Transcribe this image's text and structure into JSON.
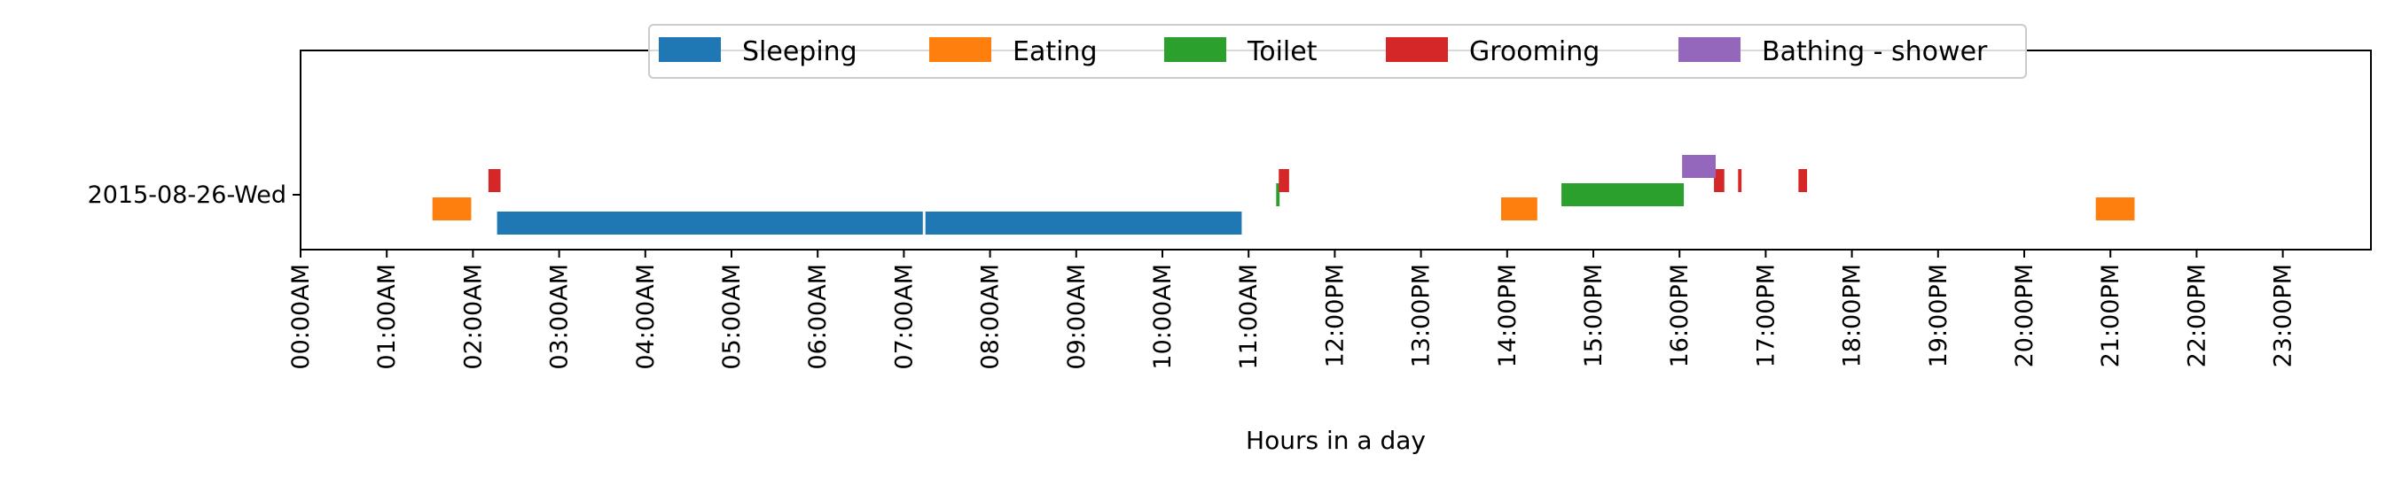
{
  "chart_data": {
    "type": "timeline",
    "title": "",
    "xlabel": "Hours in a day",
    "ylabel": "",
    "xlim": [
      0,
      24
    ],
    "x_ticks": [
      "00:00AM",
      "01:00AM",
      "02:00AM",
      "03:00AM",
      "04:00AM",
      "05:00AM",
      "06:00AM",
      "07:00AM",
      "08:00AM",
      "09:00AM",
      "10:00AM",
      "11:00AM",
      "12:00PM",
      "13:00PM",
      "14:00PM",
      "15:00PM",
      "16:00PM",
      "17:00PM",
      "18:00PM",
      "19:00PM",
      "20:00PM",
      "21:00PM",
      "22:00PM",
      "23:00PM"
    ],
    "y_categories": [
      "2015-08-26-Wed"
    ],
    "legend_position": "top-center",
    "series": [
      {
        "name": "Sleeping",
        "color": "#1f77b4",
        "lane": -1,
        "intervals": [
          [
            2.28,
            7.22
          ],
          [
            7.25,
            10.92
          ]
        ]
      },
      {
        "name": "Eating",
        "color": "#ff7f0e",
        "lane": -0.5,
        "intervals": [
          [
            1.53,
            1.98
          ],
          [
            13.93,
            14.35
          ],
          [
            20.83,
            21.28
          ]
        ]
      },
      {
        "name": "Toilet",
        "color": "#2ca02c",
        "lane": 0,
        "intervals": [
          [
            11.32,
            11.36
          ],
          [
            14.63,
            16.05
          ]
        ]
      },
      {
        "name": "Grooming",
        "color": "#d62728",
        "lane": 0.5,
        "intervals": [
          [
            2.18,
            2.32
          ],
          [
            11.35,
            11.47
          ],
          [
            16.4,
            16.52
          ],
          [
            16.68,
            16.72
          ],
          [
            17.38,
            17.48
          ]
        ]
      },
      {
        "name": "Bathing - shower",
        "color": "#9467bd",
        "lane": 1,
        "intervals": [
          [
            16.03,
            16.42
          ]
        ]
      }
    ]
  }
}
